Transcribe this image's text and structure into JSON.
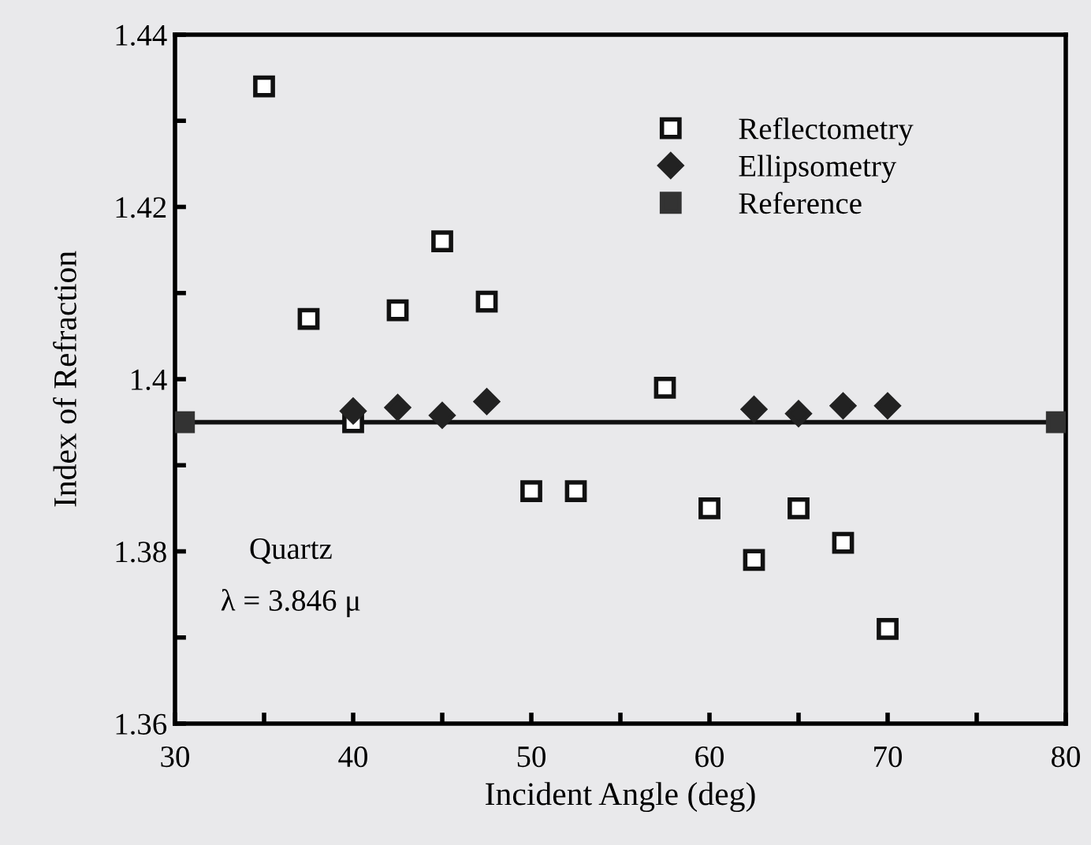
{
  "chart_data": {
    "type": "scatter",
    "xlabel": "Incident Angle (deg)",
    "ylabel": "Index of Refraction",
    "xlim": [
      30,
      80
    ],
    "ylim": [
      1.36,
      1.44
    ],
    "xticks": [
      30,
      {
        "value": 35,
        "label": null
      },
      40,
      {
        "value": 45,
        "label": null
      },
      50,
      {
        "value": 55,
        "label": null
      },
      60,
      {
        "value": 65,
        "label": null
      },
      70,
      {
        "value": 75,
        "label": null
      },
      80
    ],
    "yticks": [
      1.36,
      {
        "value": 1.37,
        "label": null
      },
      1.38,
      {
        "value": 1.39,
        "label": null
      },
      1.4,
      {
        "value": 1.41,
        "label": null
      },
      1.42,
      {
        "value": 1.43,
        "label": null
      },
      1.44
    ],
    "grid": false,
    "legend": "top right",
    "series": [
      {
        "name": "Reflectometry",
        "color": "#111111",
        "marker": "square",
        "x": [
          35,
          37.5,
          40,
          42.5,
          45,
          47.5,
          50,
          52.5,
          57.5,
          60,
          62.5,
          65,
          67.5,
          70
        ],
        "values": [
          1.434,
          1.407,
          1.395,
          1.408,
          1.416,
          1.409,
          1.387,
          1.387,
          1.399,
          1.385,
          1.379,
          1.385,
          1.381,
          1.371
        ]
      },
      {
        "name": "Ellipsometry",
        "color": "#222222",
        "marker": "diamond",
        "x": [
          40,
          42.5,
          45,
          47.5,
          62.5,
          65,
          67.5,
          70
        ],
        "values": [
          1.3963,
          1.3967,
          1.3958,
          1.3974,
          1.3965,
          1.396,
          1.3969,
          1.3969
        ]
      },
      {
        "name": "Reference",
        "color": "#333333",
        "marker": "square",
        "x": [
          30.5,
          79.5
        ],
        "values": [
          1.395,
          1.395
        ]
      }
    ],
    "ref_lines": [
      {
        "axis": "y",
        "value": 1.395,
        "color": "#111111",
        "line_style": "solid"
      }
    ],
    "annotations": [
      "Quartz",
      "λ = 3.846 μ"
    ]
  }
}
